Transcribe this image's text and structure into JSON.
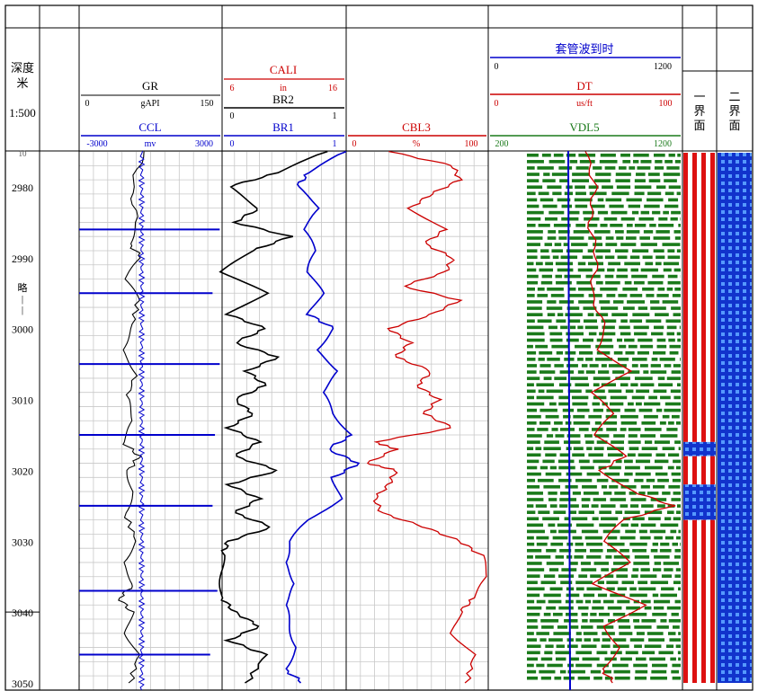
{
  "header": {
    "depth_label_1": "深度",
    "depth_label_2": "米",
    "scale": "1:500",
    "cut_label": "10",
    "gr_label": "GR",
    "gr_min": "0",
    "gr_unit": "gAPI",
    "gr_max": "150",
    "ccl_label": "CCL",
    "ccl_min": "-3000",
    "ccl_unit": "mv",
    "ccl_max": "3000",
    "cali_label": "CALI",
    "cali_min": "6",
    "cali_unit": "in",
    "cali_max": "16",
    "br2_label": "BR2",
    "br2_min": "0",
    "br2_max": "1",
    "br1_label": "BR1",
    "br1_min": "0",
    "br1_max": "1",
    "cbl3_label": "CBL3",
    "cbl3_min": "0",
    "cbl3_unit": "%",
    "cbl3_max": "100",
    "tt_label": "套管波到时",
    "tt_min": "0",
    "tt_max": "1200",
    "dt_label": "DT",
    "dt_min": "0",
    "dt_unit": "us/ft",
    "dt_max": "100",
    "vdl_label": "VDL5",
    "vdl_min": "200",
    "vdl_max": "1200",
    "interface1_label": [
      "一",
      "界",
      "面"
    ],
    "interface2_label": [
      "二",
      "界",
      "面"
    ],
    "side_marker": [
      "略",
      "|",
      "|"
    ]
  },
  "colors": {
    "black": "#000000",
    "blue": "#0000cc",
    "red": "#cc0000",
    "green": "#1a7a1a",
    "grid": "#c8c8c8"
  },
  "chart_data": {
    "type": "line",
    "depth_range": [
      2975,
      3050
    ],
    "depth_ticks": [
      2980,
      2990,
      3000,
      3010,
      3020,
      3030,
      3040,
      3050
    ],
    "depth_labels": [
      "2980",
      "2990",
      "3000",
      "3010",
      "3020",
      "3030",
      "3040",
      "3050"
    ],
    "series": [
      {
        "name": "GR",
        "unit": "gAPI",
        "range": [
          0,
          150
        ],
        "depth": [
          2975,
          2980,
          2985,
          2988,
          2990,
          2993,
          2996,
          3000,
          3003,
          3006,
          3010,
          3013,
          3016,
          3018,
          3020,
          3023,
          3026,
          3030,
          3033,
          3036,
          3038,
          3040,
          3043,
          3046,
          3050
        ],
        "values": [
          68,
          55,
          60,
          52,
          66,
          48,
          62,
          55,
          44,
          60,
          50,
          58,
          46,
          63,
          52,
          56,
          48,
          60,
          45,
          58,
          42,
          55,
          50,
          62,
          54
        ]
      },
      {
        "name": "CCL",
        "unit": "mv",
        "range": [
          -3000,
          3000
        ],
        "depth": [
          2975,
          2980,
          2984,
          2986,
          2988,
          2990,
          2994,
          2995,
          2998,
          3000,
          3004,
          3005,
          3008,
          3010,
          3014,
          3015,
          3018,
          3020,
          3024,
          3025,
          3028,
          3030,
          3034,
          3037,
          3039,
          3040,
          3044,
          3046,
          3050
        ],
        "values": [
          100,
          150,
          80,
          2900,
          120,
          100,
          60,
          2600,
          100,
          50,
          80,
          2900,
          70,
          40,
          90,
          2700,
          60,
          40,
          70,
          2600,
          50,
          60,
          80,
          2800,
          50,
          40,
          70,
          2500,
          60
        ]
      },
      {
        "name": "BR2",
        "range": [
          0,
          1
        ],
        "depth": [
          2975,
          2978,
          2980,
          2983,
          2985,
          2987,
          2989,
          2992,
          2995,
          2998,
          3000,
          3002,
          3004,
          3006,
          3008,
          3010,
          3012,
          3014,
          3016,
          3018,
          3020,
          3022,
          3024,
          3026,
          3028,
          3030,
          3032,
          3035,
          3038,
          3040,
          3042,
          3044,
          3046,
          3050
        ],
        "values": [
          0.85,
          0.45,
          0.05,
          0.3,
          0.1,
          0.55,
          0.25,
          0.0,
          0.35,
          0.05,
          0.35,
          0.1,
          0.45,
          0.2,
          0.35,
          0.1,
          0.25,
          0.05,
          0.3,
          0.1,
          0.45,
          0.05,
          0.3,
          0.1,
          0.4,
          0.05,
          0.0,
          0.0,
          0.0,
          0.1,
          0.3,
          0.05,
          0.35,
          0.2
        ]
      },
      {
        "name": "BR1",
        "range": [
          0,
          1
        ],
        "depth": [
          2975,
          2978,
          2980,
          2983,
          2986,
          2989,
          2992,
          2995,
          2998,
          3000,
          3003,
          3006,
          3009,
          3012,
          3015,
          3017,
          3019,
          3021,
          3024,
          3027,
          3030,
          3033,
          3036,
          3039,
          3042,
          3045,
          3048,
          3050
        ],
        "values": [
          1.0,
          0.7,
          0.6,
          0.8,
          0.65,
          0.75,
          0.7,
          0.8,
          0.7,
          0.9,
          0.75,
          0.95,
          0.8,
          0.9,
          1.05,
          0.85,
          1.1,
          0.9,
          0.95,
          0.7,
          0.55,
          0.5,
          0.6,
          0.5,
          0.55,
          0.6,
          0.5,
          0.65
        ]
      },
      {
        "name": "CBL3",
        "unit": "%",
        "range": [
          0,
          100
        ],
        "depth": [
          2975,
          2977,
          2979,
          2981,
          2983,
          2986,
          2988,
          2990,
          2992,
          2994,
          2996,
          2998,
          3000,
          3002,
          3004,
          3006,
          3008,
          3010,
          3012,
          3014,
          3016,
          3017,
          3019,
          3020,
          3022,
          3024,
          3026,
          3028,
          3030,
          3032,
          3035,
          3038,
          3040,
          3043,
          3046,
          3050
        ],
        "values": [
          30,
          75,
          80,
          60,
          45,
          70,
          55,
          75,
          70,
          40,
          80,
          60,
          30,
          45,
          35,
          60,
          50,
          65,
          55,
          75,
          20,
          35,
          15,
          35,
          30,
          20,
          25,
          55,
          80,
          95,
          100,
          90,
          80,
          75,
          90,
          85
        ]
      },
      {
        "name": "DT",
        "unit": "us/ft",
        "range": [
          0,
          100
        ],
        "depth": [
          2975,
          2980,
          2985,
          2990,
          2995,
          3000,
          3003,
          3006,
          3009,
          3012,
          3015,
          3018,
          3020,
          3023,
          3025,
          3027,
          3030,
          3033,
          3036,
          3039,
          3042,
          3045,
          3048,
          3050
        ],
        "values": [
          50,
          55,
          52,
          56,
          53,
          60,
          55,
          75,
          52,
          65,
          55,
          70,
          58,
          75,
          95,
          70,
          60,
          72,
          55,
          80,
          60,
          68,
          58,
          65
        ]
      }
    ],
    "casing_arrival": [
      {
        "range": [
          0,
          1200
        ],
        "value": 400
      }
    ],
    "interface1": {
      "segments": [
        [
          2975,
          3016,
          "striped"
        ],
        [
          3016,
          3018,
          "dotted"
        ],
        [
          3018,
          3022,
          "striped"
        ],
        [
          3022,
          3027,
          "dotted"
        ],
        [
          3027,
          3050,
          "striped"
        ]
      ]
    },
    "interface2": {
      "segments": [
        [
          2975,
          3050,
          "dotted"
        ]
      ]
    }
  }
}
